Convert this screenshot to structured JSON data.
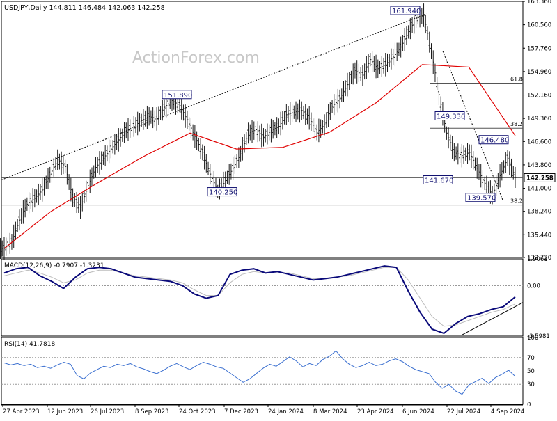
{
  "header": {
    "symbol": "USDJPY,Daily",
    "ohlc": "144.811 146.484 142.063 142.258"
  },
  "watermark": "ActionForex.com",
  "colors": {
    "price_bars": "#1a1a1a",
    "ma": "#e00000",
    "macd": "#0a0a7a",
    "signal": "#bbbbbb",
    "rsi": "#3a6fd0",
    "level": "#555555",
    "label_border": "#101070",
    "label_text": "#101070",
    "watermark": "#c8c8c8"
  },
  "chart_data": [
    {
      "id": "price",
      "type": "ohlc",
      "ylim": [
        132.72,
        163.36
      ],
      "y_ticks": [
        "163.360",
        "160.560",
        "157.760",
        "154.960",
        "152.160",
        "149.360",
        "146.600",
        "143.800",
        "141.000",
        "138.240",
        "135.440",
        "132.720"
      ],
      "current_price": "142.258",
      "x_ticks": [
        "27 Apr 2023",
        "12 Jun 2023",
        "26 Jul 2023",
        "8 Sep 2023",
        "24 Oct 2023",
        "7 Dec 2023",
        "24 Jan 2024",
        "8 Mar 2024",
        "23 Apr 2024",
        "6 Jun 2024",
        "22 Jul 2024",
        "4 Sep 2024"
      ],
      "series": [
        {
          "values": [
            133.8,
            134.6,
            137.2,
            139.1,
            139.8,
            140.8,
            142.6,
            144.4,
            143.6,
            139.9,
            138.7,
            141.3,
            143.5,
            144.6,
            145.7,
            146.8,
            147.9,
            148.4,
            149.1,
            149.6,
            149.3,
            150.7,
            151.5,
            150.9,
            149.2,
            147.2,
            145.3,
            142.7,
            140.6,
            141.9,
            143.4,
            145.1,
            147.6,
            148.0,
            147.1,
            147.9,
            148.4,
            149.8,
            150.1,
            150.3,
            149.4,
            147.7,
            148.6,
            150.8,
            151.7,
            153.4,
            155.1,
            154.5,
            156.4,
            155.3,
            155.8,
            156.7,
            157.9,
            159.7,
            161.3,
            161.7,
            157.4,
            152.2,
            147.6,
            145.3,
            144.9,
            145.3,
            143.4,
            141.6,
            140.2,
            142.5,
            144.6,
            142.3
          ]
        },
        {
          "name": "",
          "values": [
            null
          ]
        }
      ],
      "ma_anchors_x": [
        "27 Apr 2023",
        "12 Jun 2023",
        "26 Jul 2023",
        "8 Sep 2023",
        "24 Oct 2023",
        "7 Dec 2023",
        "24 Jan 2024",
        "8 Mar 2024",
        "23 Apr 2024",
        "6 Jun 2024",
        "22 Jul 2024",
        "4 Sep 2024"
      ],
      "ma_values": [
        133.8,
        138.2,
        141.6,
        144.8,
        147.6,
        145.7,
        145.9,
        147.7,
        151.2,
        155.8,
        155.5,
        147.3
      ],
      "annotations": [
        {
          "label": "161.940",
          "value": 161.94
        },
        {
          "label": "151.890",
          "value": 151.89
        },
        {
          "label": "149.330",
          "value": 149.33
        },
        {
          "label": "146.480",
          "value": 146.48
        },
        {
          "label": "141.670",
          "value": 141.67
        },
        {
          "label": "140.250",
          "value": 140.25
        },
        {
          "label": "139.570",
          "value": 139.57
        }
      ],
      "levels": [
        {
          "label": "61.8",
          "value": 153.58
        },
        {
          "label": "38.2",
          "value": 148.19
        },
        {
          "label": "",
          "value": 142.26
        },
        {
          "label": "38.2",
          "value": 139.0
        }
      ]
    },
    {
      "id": "macd",
      "title": "MACD(12,26,9) -0.7907 -1.3231",
      "ylim": [
        -3.5981,
        1.9061
      ],
      "y_ticks": [
        "1.9061",
        "0.00",
        "-3.5981"
      ],
      "macd_values": [
        0.9,
        1.2,
        1.3,
        0.7,
        0.3,
        -0.2,
        0.6,
        1.2,
        1.3,
        1.2,
        0.9,
        0.6,
        0.5,
        0.4,
        0.3,
        0.0,
        -0.6,
        -0.9,
        -0.7,
        0.8,
        1.1,
        1.2,
        0.9,
        1.0,
        0.8,
        0.6,
        0.4,
        0.5,
        0.6,
        0.8,
        1.0,
        1.2,
        1.4,
        1.3,
        -0.4,
        -1.9,
        -3.1,
        -3.4,
        -2.7,
        -2.2,
        -2.0,
        -1.7,
        -1.5,
        -0.8
      ],
      "signal_values": [
        0.7,
        0.9,
        1.1,
        0.9,
        0.6,
        0.2,
        0.4,
        0.9,
        1.1,
        1.1,
        0.9,
        0.7,
        0.6,
        0.5,
        0.4,
        0.2,
        -0.3,
        -0.7,
        -0.7,
        0.2,
        0.8,
        1.0,
        0.9,
        0.9,
        0.9,
        0.7,
        0.5,
        0.5,
        0.6,
        0.7,
        0.9,
        1.1,
        1.3,
        1.3,
        0.4,
        -0.9,
        -2.2,
        -2.9,
        -2.8,
        -2.5,
        -2.2,
        -1.9,
        -1.7,
        -1.3
      ]
    },
    {
      "id": "rsi",
      "title": "RSI(14) 41.7818",
      "ylim": [
        0,
        100
      ],
      "y_ticks": [
        "100",
        "70",
        "50",
        "30",
        "0"
      ],
      "guides": [
        70,
        30
      ],
      "values": [
        62,
        59,
        61,
        58,
        60,
        55,
        57,
        54,
        59,
        63,
        60,
        43,
        38,
        47,
        52,
        57,
        55,
        60,
        58,
        61,
        56,
        53,
        49,
        46,
        51,
        57,
        61,
        56,
        52,
        58,
        63,
        60,
        56,
        54,
        47,
        40,
        33,
        38,
        46,
        54,
        60,
        57,
        64,
        71,
        65,
        56,
        61,
        58,
        67,
        72,
        80,
        68,
        60,
        55,
        58,
        63,
        58,
        60,
        65,
        68,
        64,
        57,
        52,
        49,
        46,
        33,
        24,
        30,
        20,
        15,
        29,
        34,
        39,
        31,
        40,
        45,
        51,
        42
      ]
    }
  ]
}
